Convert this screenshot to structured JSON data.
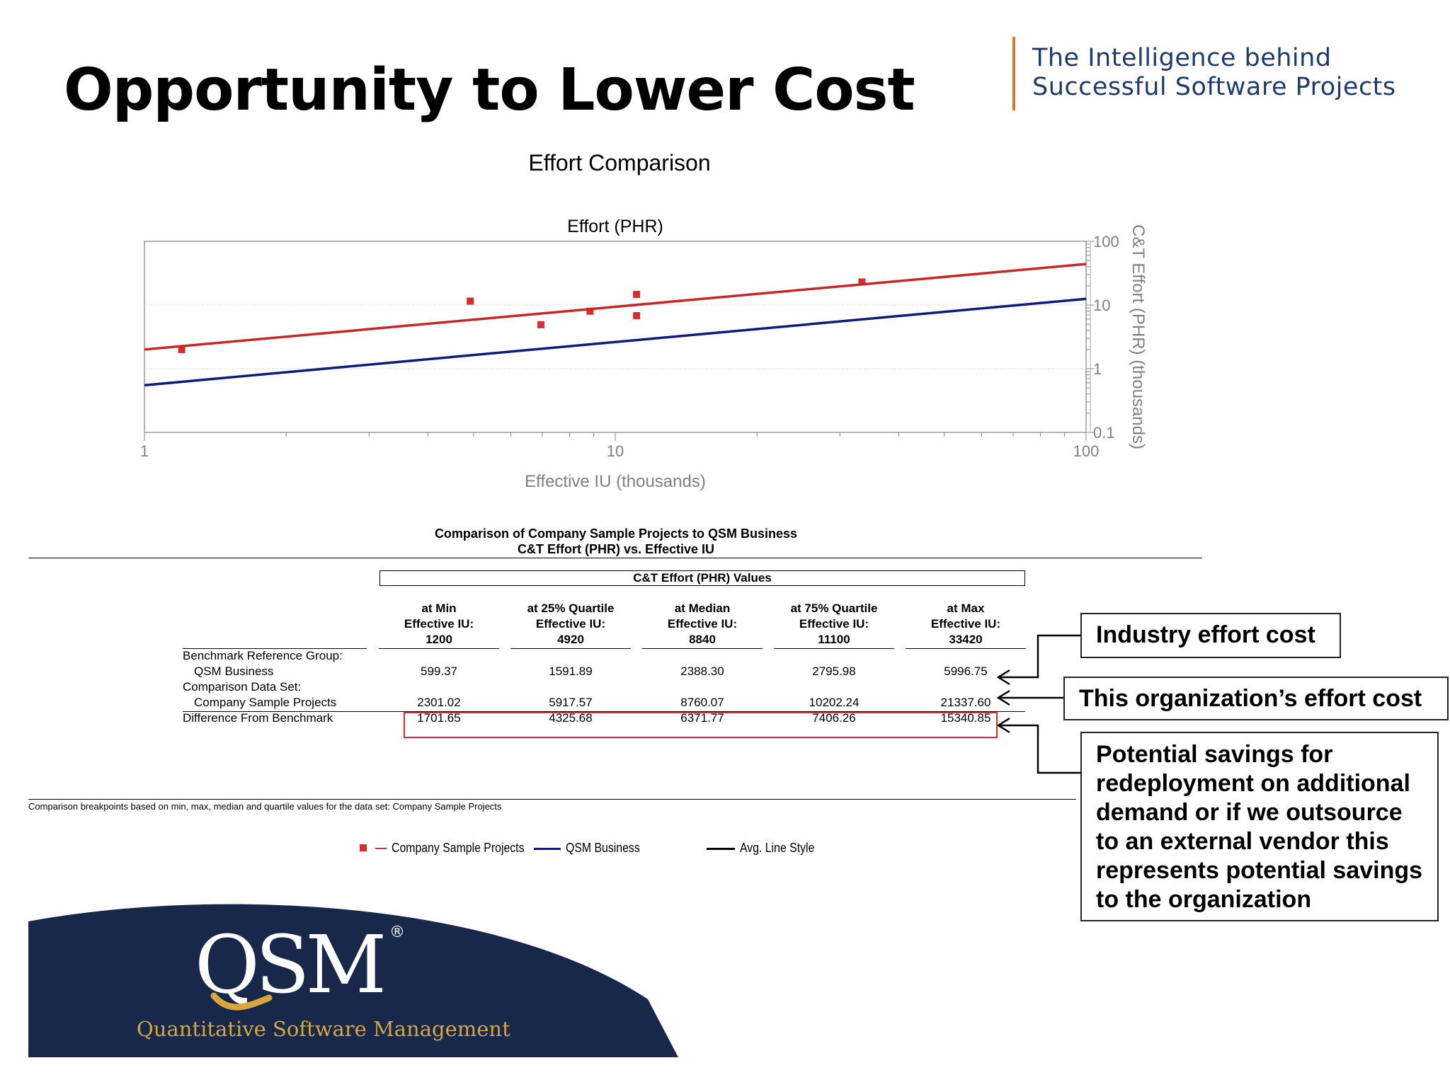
{
  "slide": {
    "title": "Opportunity to Lower Cost",
    "tagline_line1": "The Intelligence behind",
    "tagline_line2": "Successful Software Projects"
  },
  "chart_heading": "Effort Comparison",
  "chart_data": {
    "type": "scatter",
    "title": "Effort (PHR)",
    "xlabel": "Effective IU (thousands)",
    "ylabel": "C&T Effort (PHR) (thousands)",
    "xscale": "log",
    "yscale": "log",
    "xlim": [
      1,
      100
    ],
    "ylim": [
      0.1,
      100
    ],
    "xticks": [
      "1",
      "10",
      "100"
    ],
    "yticks": [
      "100",
      "10",
      "1",
      "0.1"
    ],
    "grid": "horizontal",
    "series": [
      {
        "name": "Company Sample Projects",
        "kind": "points",
        "color": "#d32f2f",
        "x": [
          1.2,
          4.92,
          6.95,
          8.84,
          11.1,
          11.1,
          33.42
        ],
        "y": [
          2.0,
          11.5,
          4.9,
          8.0,
          14.7,
          6.8,
          23.0
        ]
      },
      {
        "name": "Company Sample Projects",
        "kind": "line",
        "color": "#c62828",
        "x": [
          1,
          100
        ],
        "y": [
          2.0,
          44.0
        ]
      },
      {
        "name": "QSM Business",
        "kind": "line",
        "color": "#0d1b7a",
        "x": [
          1,
          100
        ],
        "y": [
          0.55,
          12.5
        ]
      }
    ]
  },
  "table": {
    "title_line1": "Comparison of Company Sample Projects to QSM Business",
    "title_line2": "C&T Effort (PHR) vs. Effective IU",
    "values_header": "C&T Effort (PHR) Values",
    "columns": [
      {
        "l1": "at Min",
        "l2": "Effective IU:",
        "l3": "1200"
      },
      {
        "l1": "at 25% Quartile",
        "l2": "Effective IU:",
        "l3": "4920"
      },
      {
        "l1": "at Median",
        "l2": "Effective IU:",
        "l3": "8840"
      },
      {
        "l1": "at 75% Quartile",
        "l2": "Effective IU:",
        "l3": "11100"
      },
      {
        "l1": "at Max",
        "l2": "Effective IU:",
        "l3": "33420"
      }
    ],
    "row_labels": {
      "benchmark_group": "Benchmark Reference Group:",
      "benchmark": "QSM Business",
      "comparison_set": "Comparison Data Set:",
      "company": "Company Sample Projects",
      "difference": "Difference From Benchmark"
    },
    "benchmark_values": [
      "599.37",
      "1591.89",
      "2388.30",
      "2795.98",
      "5996.75"
    ],
    "company_values": [
      "2301.02",
      "5917.57",
      "8760.07",
      "10202.24",
      "21337.60"
    ],
    "difference_values": [
      "1701.65",
      "4325.68",
      "6371.77",
      "7406.26",
      "15340.85"
    ],
    "footnote": "Comparison breakpoints based on min, max, median and quartile values for the data set: Company Sample Projects"
  },
  "legend": {
    "company": "Company Sample Projects",
    "qsm": "QSM Business",
    "avg": "Avg. Line Style"
  },
  "callouts": {
    "industry": "Industry effort cost",
    "organization": "This organization’s effort cost",
    "savings": "Potential savings for redeployment on additional demand or if we outsource to an external vendor this represents potential savings to the organization"
  },
  "logo": {
    "brand": "QSM",
    "registered": "®",
    "subtitle": "Quantitative Software Management"
  },
  "colors": {
    "tagline": "#1f3a6b",
    "accent_bar": "#d07a2a",
    "company_series": "#d32f2f",
    "qsm_series": "#0d1b7a",
    "footer_navy": "#17284a",
    "logo_gold": "#d9a63c"
  }
}
